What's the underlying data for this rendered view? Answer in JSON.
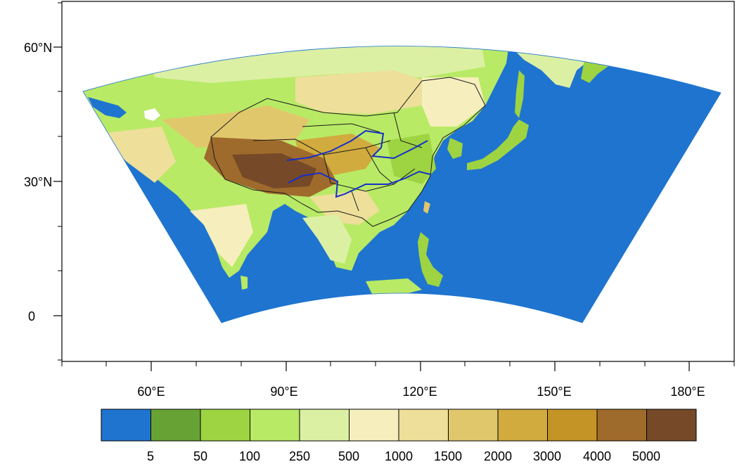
{
  "map": {
    "lat_labels": [
      "60°N",
      "30°N",
      "0"
    ],
    "lon_labels": [
      "60°E",
      "90°E",
      "120°E",
      "150°E",
      "180°E"
    ]
  },
  "legend": {
    "labels": [
      "5",
      "50",
      "100",
      "250",
      "500",
      "1000",
      "1500",
      "2000",
      "3000",
      "4000",
      "5000"
    ],
    "colors": [
      "#1f74cf",
      "#67a334",
      "#9ed442",
      "#b8ea66",
      "#dcf0a4",
      "#f6eebd",
      "#eedf9a",
      "#e1c76c",
      "#d1ab3e",
      "#c49426",
      "#9f6b2c",
      "#764a28"
    ]
  },
  "colors": {
    "ocean": "#1f74cf",
    "lowland": "#b8ea66",
    "plateau": "#764a28",
    "borders": "#1a1a1a",
    "rivers": "#1530c8"
  }
}
